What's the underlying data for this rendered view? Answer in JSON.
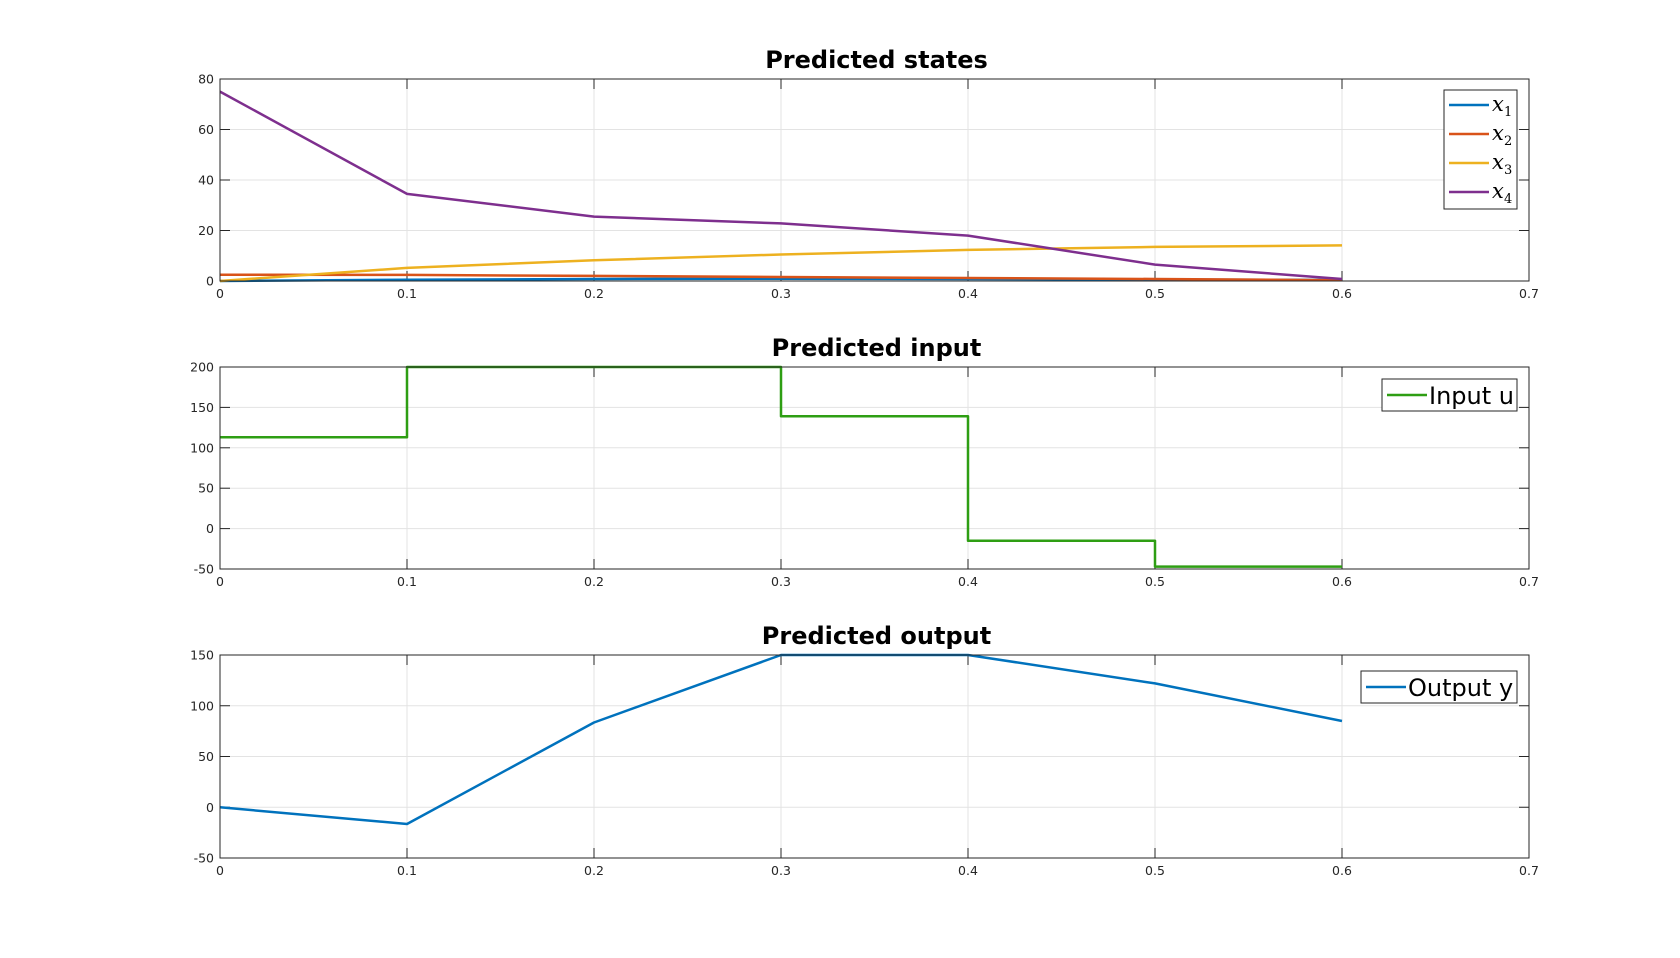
{
  "chart_data": [
    {
      "type": "line",
      "title": "Predicted states",
      "xlim": [
        0,
        0.7
      ],
      "ylim": [
        0,
        80
      ],
      "xticks": [
        "0",
        "0.1",
        "0.2",
        "0.3",
        "0.4",
        "0.5",
        "0.6",
        "0.7"
      ],
      "yticks": [
        "0",
        "20",
        "40",
        "60",
        "80"
      ],
      "grid": true,
      "legend": "top-right",
      "x": [
        0,
        0.1,
        0.2,
        0.3,
        0.4,
        0.5,
        0.6
      ],
      "series": [
        {
          "name": "x",
          "subscript": "1",
          "color": "#0072BD",
          "values": [
            0,
            0.5,
            0.8,
            0.9,
            0.8,
            0.6,
            0.4
          ]
        },
        {
          "name": "x",
          "subscript": "2",
          "color": "#D95319",
          "values": [
            2.5,
            2.4,
            2.0,
            1.6,
            1.2,
            0.8,
            0.3
          ]
        },
        {
          "name": "x",
          "subscript": "3",
          "color": "#EDB120",
          "values": [
            0,
            5.2,
            8.2,
            10.5,
            12.3,
            13.5,
            14.1
          ]
        },
        {
          "name": "x",
          "subscript": "4",
          "color": "#7E2F8E",
          "values": [
            75,
            34.5,
            25.5,
            22.8,
            18,
            6.5,
            0.8
          ]
        }
      ]
    },
    {
      "type": "line",
      "step": true,
      "title": "Predicted input",
      "xlim": [
        0,
        0.7
      ],
      "ylim": [
        -50,
        200
      ],
      "xticks": [
        "0",
        "0.1",
        "0.2",
        "0.3",
        "0.4",
        "0.5",
        "0.6",
        "0.7"
      ],
      "yticks": [
        "-50",
        "0",
        "50",
        "100",
        "150",
        "200"
      ],
      "grid": true,
      "legend": "top-right",
      "x": [
        0,
        0.1,
        0.2,
        0.3,
        0.4,
        0.5,
        0.6
      ],
      "series": [
        {
          "name": "Input u",
          "color": "#2E9E13",
          "values": [
            113,
            200,
            200,
            139,
            -15,
            -47,
            -47
          ]
        }
      ]
    },
    {
      "type": "line",
      "title": "Predicted output",
      "xlim": [
        0,
        0.7
      ],
      "ylim": [
        -50,
        150
      ],
      "xticks": [
        "0",
        "0.1",
        "0.2",
        "0.3",
        "0.4",
        "0.5",
        "0.6",
        "0.7"
      ],
      "yticks": [
        "-50",
        "0",
        "50",
        "100",
        "150"
      ],
      "grid": true,
      "legend": "top-right",
      "x": [
        0,
        0.1,
        0.2,
        0.3,
        0.4,
        0.5,
        0.6
      ],
      "series": [
        {
          "name": "Output y",
          "color": "#0072BD",
          "values": [
            0,
            -16.5,
            83.5,
            150,
            150,
            122,
            85
          ]
        }
      ]
    }
  ]
}
